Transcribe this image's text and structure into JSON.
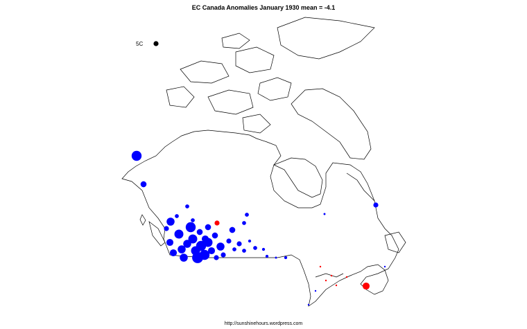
{
  "title": "EC Canada Anomalies January 1930  mean = -4.1",
  "footer": "http://sunshinehours.wordpress.com",
  "legend": {
    "label": "5C",
    "anomaly": 5,
    "color": "#000000"
  },
  "colors": {
    "cold": "#0000ff",
    "warm": "#ff0000",
    "outline": "#000000"
  },
  "map": {
    "region": "Canada",
    "month": "January 1930",
    "mean_anomaly": -4.1
  },
  "stations": [
    {
      "anomaly": -10
    },
    {
      "anomaly": -6
    },
    {
      "anomaly": -8
    },
    {
      "anomaly": -4
    },
    {
      "anomaly": 5
    },
    {
      "anomaly": -4
    },
    {
      "anomaly": -4
    },
    {
      "anomaly": -5
    },
    {
      "anomaly": -2
    },
    {
      "anomaly": 7
    },
    {
      "anomaly": -9
    },
    {
      "anomaly": -10
    },
    {
      "anomaly": -9
    },
    {
      "anomaly": -8
    },
    {
      "anomaly": -10
    },
    {
      "anomaly": -11
    },
    {
      "anomaly": -9
    },
    {
      "anomaly": -8
    },
    {
      "anomaly": -7
    },
    {
      "anomaly": -9
    },
    {
      "anomaly": -10
    },
    {
      "anomaly": -8
    },
    {
      "anomaly": -7
    },
    {
      "anomaly": -6
    },
    {
      "anomaly": -8
    },
    {
      "anomaly": -6
    },
    {
      "anomaly": -5
    },
    {
      "anomaly": -7
    },
    {
      "anomaly": -5
    },
    {
      "anomaly": -4
    },
    {
      "anomaly": -6
    },
    {
      "anomaly": -5
    },
    {
      "anomaly": -4
    },
    {
      "anomaly": -3
    },
    {
      "anomaly": -4
    },
    {
      "anomaly": -3
    },
    {
      "anomaly": -5
    },
    {
      "anomaly": -4
    },
    {
      "anomaly": -3
    },
    {
      "anomaly": -2
    },
    {
      "anomaly": -6
    },
    {
      "anomaly": -5
    },
    {
      "anomaly": -4
    },
    {
      "anomaly": -7
    },
    {
      "anomaly": -3
    },
    {
      "anomaly": 1
    },
    {
      "anomaly": 1
    },
    {
      "anomaly": 1
    },
    {
      "anomaly": 1
    },
    {
      "anomaly": -1
    },
    {
      "anomaly": -1
    },
    {
      "anomaly": 1
    },
    {
      "anomaly": -1
    }
  ]
}
